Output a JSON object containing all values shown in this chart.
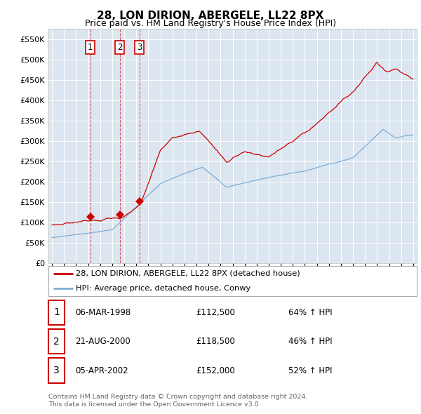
{
  "title": "28, LON DIRION, ABERGELE, LL22 8PX",
  "subtitle": "Price paid vs. HM Land Registry's House Price Index (HPI)",
  "legend_line1": "28, LON DIRION, ABERGELE, LL22 8PX (detached house)",
  "legend_line2": "HPI: Average price, detached house, Conwy",
  "footer1": "Contains HM Land Registry data © Crown copyright and database right 2024.",
  "footer2": "This data is licensed under the Open Government Licence v3.0.",
  "transactions": [
    {
      "num": 1,
      "date": "06-MAR-1998",
      "price": "£112,500",
      "change": "64% ↑ HPI",
      "year": 1998.17
    },
    {
      "num": 2,
      "date": "21-AUG-2000",
      "price": "£118,500",
      "change": "46% ↑ HPI",
      "year": 2000.63
    },
    {
      "num": 3,
      "date": "05-APR-2002",
      "price": "£152,000",
      "change": "52% ↑ HPI",
      "year": 2002.26
    }
  ],
  "transaction_values": [
    112500,
    118500,
    152000
  ],
  "background_color": "#ffffff",
  "plot_bg_color": "#dce6f1",
  "grid_color": "#ffffff",
  "red_color": "#cc0000",
  "blue_color": "#7aadd4",
  "ylim": [
    0,
    575000
  ],
  "yticks": [
    0,
    50000,
    100000,
    150000,
    200000,
    250000,
    300000,
    350000,
    400000,
    450000,
    500000,
    550000
  ]
}
